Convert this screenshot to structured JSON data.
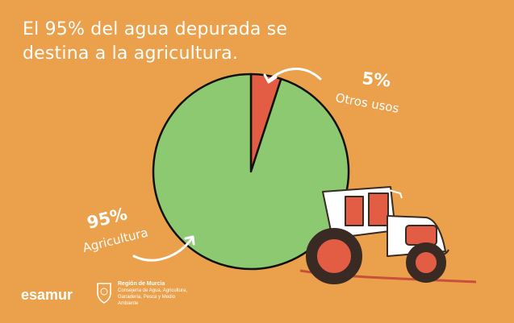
{
  "title": "El 95% del agua depurada se destina a la agricultura.",
  "chart_data": {
    "type": "pie",
    "title": "El 95% del agua depurada se destina a la agricultura.",
    "slices": [
      {
        "label": "Agricultura",
        "value": 95,
        "value_label": "95%",
        "color": "#8CC971"
      },
      {
        "label": "Otros usos",
        "value": 5,
        "value_label": "5%",
        "color": "#E35D45"
      }
    ]
  },
  "footer": {
    "brand": "esamur",
    "org_name": "Región de Murcia",
    "org_dept": "Consejería de Agua, Agricultura, Ganadería, Pesca y Medio Ambiente"
  },
  "colors": {
    "background": "#EBA04B",
    "accent_red": "#E35D45",
    "green": "#8CC971"
  }
}
